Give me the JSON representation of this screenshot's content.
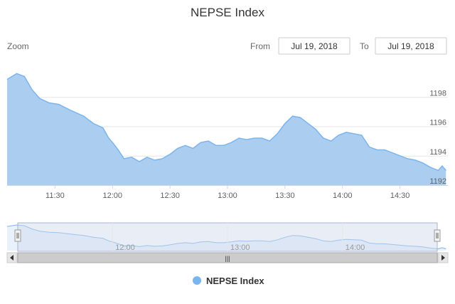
{
  "chart_data": {
    "type": "area",
    "title": "NEPSE Index",
    "series": [
      {
        "name": "NEPSE Index",
        "x": [
          "11:05",
          "11:10",
          "11:14",
          "11:18",
          "11:22",
          "11:27",
          "11:32",
          "11:38",
          "11:45",
          "11:50",
          "11:55",
          "11:58",
          "12:00",
          "12:03",
          "12:06",
          "12:10",
          "12:14",
          "12:18",
          "12:22",
          "12:26",
          "12:30",
          "12:34",
          "12:38",
          "12:42",
          "12:46",
          "12:50",
          "12:54",
          "12:58",
          "13:02",
          "13:06",
          "13:10",
          "13:14",
          "13:18",
          "13:22",
          "13:26",
          "13:30",
          "13:34",
          "13:38",
          "13:42",
          "13:46",
          "13:50",
          "13:54",
          "13:58",
          "14:02",
          "14:06",
          "14:10",
          "14:14",
          "14:18",
          "14:22",
          "14:26",
          "14:30",
          "14:34",
          "14:38",
          "14:42",
          "14:46",
          "14:50",
          "14:52",
          "14:54"
        ],
        "values": [
          1199.2,
          1199.6,
          1199.4,
          1198.5,
          1197.9,
          1197.6,
          1197.5,
          1197.1,
          1196.7,
          1196.2,
          1195.9,
          1195.2,
          1194.9,
          1194.4,
          1193.8,
          1193.9,
          1193.6,
          1193.9,
          1193.7,
          1193.8,
          1194.1,
          1194.5,
          1194.7,
          1194.5,
          1194.9,
          1195.0,
          1194.7,
          1194.7,
          1194.9,
          1195.2,
          1195.1,
          1195.2,
          1195.2,
          1195.0,
          1195.5,
          1196.2,
          1196.7,
          1196.6,
          1196.2,
          1195.8,
          1195.2,
          1195.0,
          1195.4,
          1195.6,
          1195.5,
          1195.4,
          1194.6,
          1194.4,
          1194.4,
          1194.2,
          1194.0,
          1193.8,
          1193.7,
          1193.5,
          1193.2,
          1193.0,
          1193.3,
          1193.0
        ]
      }
    ],
    "xticks": [
      "11:30",
      "12:00",
      "12:30",
      "13:00",
      "13:30",
      "14:00",
      "14:30"
    ],
    "yticks": [
      "1192",
      "1194",
      "1196",
      "1198"
    ],
    "ylim": [
      1192,
      1200
    ],
    "xlim": [
      "11:05",
      "14:55"
    ],
    "navigator_ticks": [
      "12:00",
      "13:00",
      "14:00"
    ],
    "legend_position": "bottom-center",
    "colors": {
      "line": "#7cb5ec",
      "fill": "#a6cbef",
      "navigator_fill": "#ccd6eb"
    }
  },
  "range_selector": {
    "zoom_label": "Zoom",
    "from_label": "From",
    "from_value": "Jul 19, 2018",
    "to_label": "To",
    "to_value": "Jul 19, 2018"
  },
  "legend": {
    "label": "NEPSE Index"
  },
  "scrollbar": {
    "grip": "|||"
  }
}
